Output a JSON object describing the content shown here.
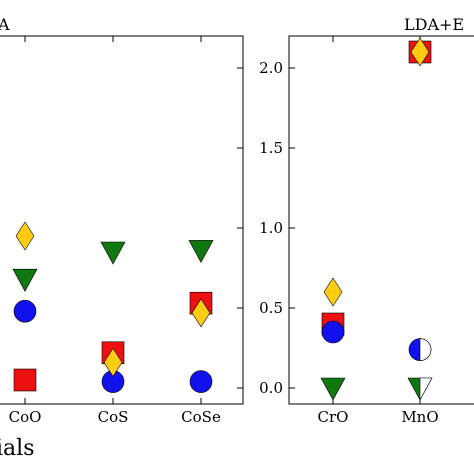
{
  "colors": {
    "red": "#ee1111",
    "blue": "#1111ee",
    "green": "#117711",
    "gold": "#ffcc11",
    "white": "#ffffff"
  },
  "chart_data": [
    {
      "type": "scatter",
      "title": "A",
      "xlabel": "ials",
      "categories": [
        "CoO",
        "CoS",
        "CoSe"
      ],
      "ylim": [
        -0.1,
        2.2
      ],
      "grid": false,
      "series": [
        {
          "marker": "square",
          "color": "red",
          "values": [
            0.05,
            0.22,
            0.53
          ]
        },
        {
          "marker": "circle",
          "color": "blue",
          "values": [
            0.48,
            0.04,
            0.04
          ]
        },
        {
          "marker": "triangle-down",
          "color": "green",
          "values": [
            0.68,
            0.85,
            0.86
          ]
        },
        {
          "marker": "diamond",
          "color": "gold",
          "values": [
            0.95,
            0.16,
            0.47
          ]
        }
      ]
    },
    {
      "type": "scatter",
      "title": "LDA+E",
      "categories": [
        "CrO",
        "MnO"
      ],
      "ylim": [
        -0.1,
        2.2
      ],
      "yticks": [
        "0.0",
        "0.5",
        "1.0",
        "1.5",
        "2.0"
      ],
      "grid": false,
      "series": [
        {
          "marker": "square",
          "color": "red",
          "values": [
            0.4,
            2.1
          ]
        },
        {
          "marker": "circle",
          "color": "blue",
          "values": [
            0.35,
            0.24
          ]
        },
        {
          "marker": "triangle-down",
          "color": "green",
          "values": [
            0.0,
            0.0
          ]
        },
        {
          "marker": "diamond",
          "color": "gold",
          "values": [
            0.6,
            2.1
          ]
        }
      ]
    }
  ]
}
